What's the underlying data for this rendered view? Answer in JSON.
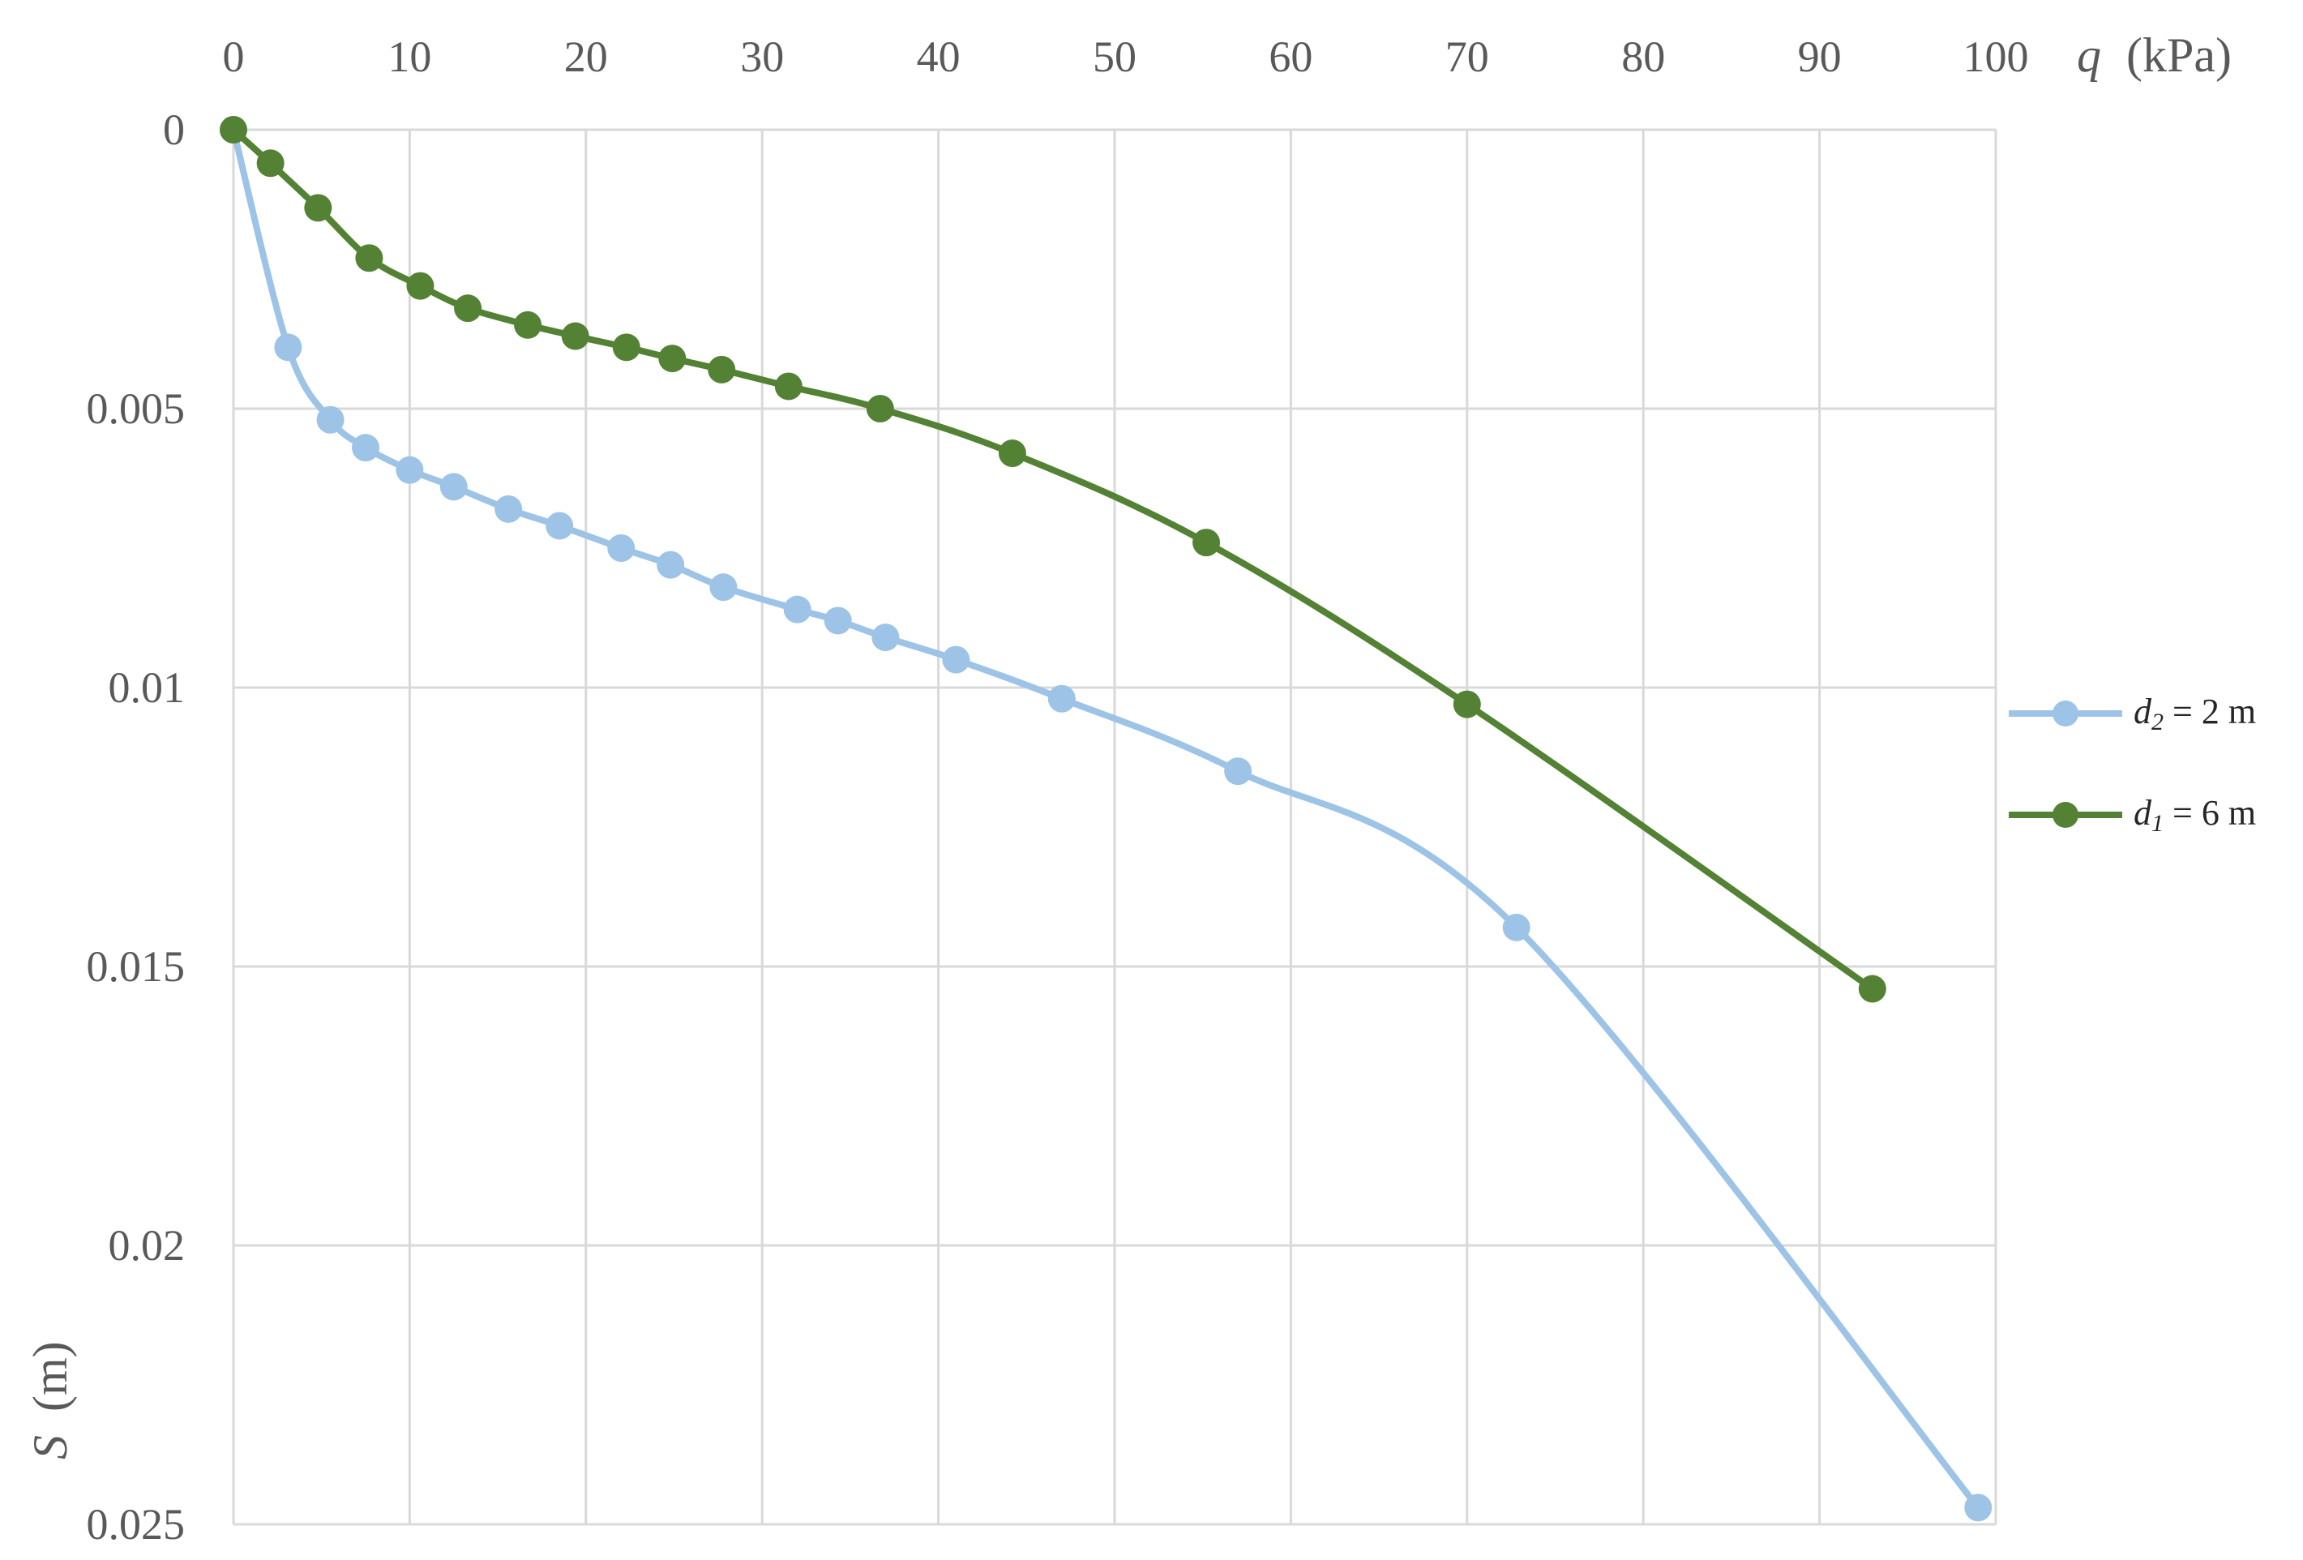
{
  "chart_data": {
    "type": "line",
    "x_axis": {
      "label_var": "q",
      "label_unit": "(kPa)",
      "position": "top",
      "range": [
        0,
        100
      ],
      "ticks": [
        0,
        10,
        20,
        30,
        40,
        50,
        60,
        70,
        80,
        90,
        100
      ],
      "tick_labels": [
        "0",
        "10",
        "20",
        "30",
        "40",
        "50",
        "60",
        "70",
        "80",
        "90",
        "100"
      ]
    },
    "y_axis": {
      "label_var": "S",
      "label_unit": "(m)",
      "reversed": true,
      "range": [
        0,
        0.025
      ],
      "ticks": [
        0,
        0.005,
        0.01,
        0.015,
        0.02,
        0.025
      ],
      "tick_labels": [
        "0",
        "0.005",
        "0.01",
        "0.015",
        "0.02",
        "0.025"
      ]
    },
    "grid": true,
    "legend_position": "right",
    "series": [
      {
        "name": "d₂ = 2 m",
        "name_var": "d",
        "name_sub": "2",
        "name_rest": " = 2 m",
        "color": "#9dc3e6",
        "x": [
          0,
          3.1,
          5.5,
          7.5,
          10.0,
          12.5,
          15.6,
          18.5,
          22.0,
          24.8,
          27.8,
          32.0,
          34.3,
          37.0,
          41.0,
          47.0,
          57.0,
          72.8,
          99.0
        ],
        "y": [
          0,
          0.0039,
          0.0052,
          0.0057,
          0.0061,
          0.0064,
          0.0068,
          0.0071,
          0.0075,
          0.0078,
          0.0082,
          0.0086,
          0.0088,
          0.0091,
          0.0095,
          0.0102,
          0.0115,
          0.0143,
          0.0247
        ]
      },
      {
        "name": "d₁ = 6 m",
        "name_var": "d",
        "name_sub": "1",
        "name_rest": " = 6 m",
        "color": "#548235",
        "x": [
          0,
          2.1,
          4.8,
          7.7,
          10.6,
          13.3,
          16.7,
          19.4,
          22.3,
          24.9,
          27.7,
          31.5,
          36.7,
          44.2,
          55.2,
          70.0,
          93.0
        ],
        "y": [
          0,
          0.0006,
          0.0014,
          0.0023,
          0.0028,
          0.0032,
          0.0035,
          0.0037,
          0.0039,
          0.0041,
          0.0043,
          0.0046,
          0.005,
          0.0058,
          0.0074,
          0.0103,
          0.0154
        ]
      }
    ]
  }
}
